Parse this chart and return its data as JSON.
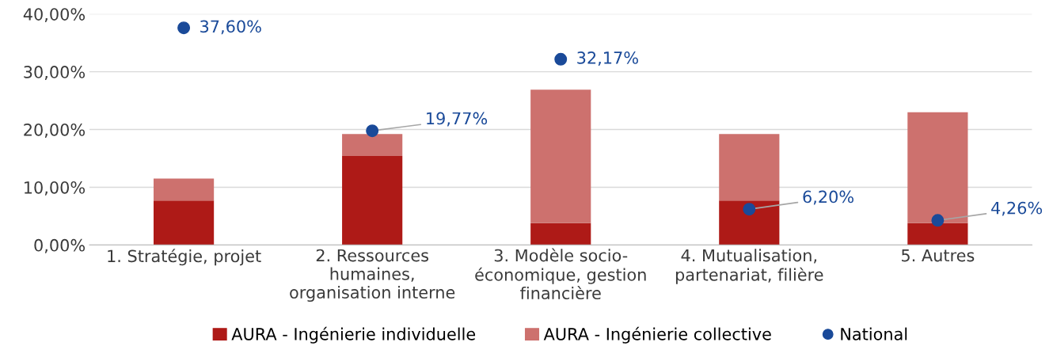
{
  "chart_data": {
    "type": "bar",
    "stacked": true,
    "categories": [
      "1. Stratégie, projet",
      "2. Ressources\nhumaines,\norganisation interne",
      "3. Modèle socio-\néconomique, gestion\nfinancière",
      "4. Mutualisation,\npartenariat, filière",
      "5. Autres"
    ],
    "series": [
      {
        "name": "AURA - Ingénierie individuelle",
        "color": "#ae1a17",
        "values": [
          7.7,
          15.4,
          3.8,
          7.7,
          3.8
        ]
      },
      {
        "name": "AURA - Ingénierie collective",
        "color": "#cd716e",
        "values": [
          3.8,
          3.8,
          23.1,
          11.5,
          19.2
        ]
      },
      {
        "name": "National",
        "type": "scatter",
        "color": "#1a4a99",
        "values": [
          37.6,
          19.77,
          32.17,
          6.2,
          4.26
        ],
        "value_labels": [
          "37,60%",
          "19,77%",
          "32,17%",
          "6,20%",
          "4,26%"
        ]
      }
    ],
    "ylim": [
      0,
      40
    ],
    "yticks": [
      {
        "value": 0,
        "label": "0,00%"
      },
      {
        "value": 10,
        "label": "10,00%"
      },
      {
        "value": 20,
        "label": "20,00%"
      },
      {
        "value": 30,
        "label": "30,00%"
      },
      {
        "value": 40,
        "label": "40,00%"
      }
    ],
    "grid": "y",
    "legend": "bottom",
    "marker": "circle"
  }
}
